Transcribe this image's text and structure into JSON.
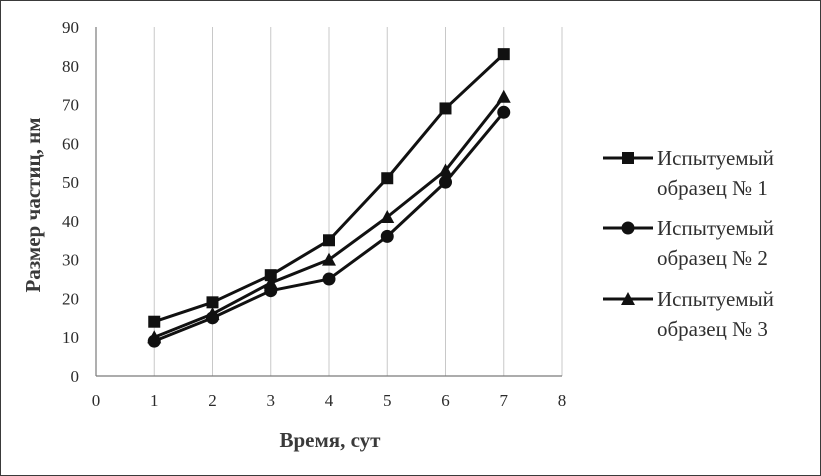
{
  "chart_data": {
    "type": "line",
    "title": "",
    "xlabel": "Время, сут",
    "ylabel": "Размер частиц, нм",
    "xlim": [
      0,
      8
    ],
    "ylim": [
      0,
      90
    ],
    "x_ticks": [
      "0",
      "1",
      "2",
      "3",
      "4",
      "5",
      "6",
      "7",
      "8"
    ],
    "y_ticks": [
      "0",
      "10",
      "20",
      "30",
      "40",
      "50",
      "60",
      "70",
      "80",
      "90"
    ],
    "grid": "vertical",
    "legend_position": "right",
    "series": [
      {
        "name_line1": "Испытуемый",
        "name_line2": "образец № 1",
        "marker": "square",
        "x": [
          1,
          2,
          3,
          4,
          5,
          6,
          7
        ],
        "values": [
          14,
          19,
          26,
          35,
          51,
          69,
          83
        ]
      },
      {
        "name_line1": "Испытуемый",
        "name_line2": "образец № 2",
        "marker": "circle",
        "x": [
          1,
          2,
          3,
          4,
          5,
          6,
          7
        ],
        "values": [
          9,
          15,
          22,
          25,
          36,
          50,
          68
        ]
      },
      {
        "name_line1": "Испытуемый",
        "name_line2": "образец № 3",
        "marker": "triangle",
        "x": [
          1,
          2,
          3,
          4,
          5,
          6,
          7
        ],
        "values": [
          10,
          16,
          24,
          30,
          41,
          53,
          72
        ]
      }
    ],
    "colors": {
      "line": "#111111",
      "grid": "#c8c8c8",
      "axis": "#7a7a7a"
    }
  }
}
